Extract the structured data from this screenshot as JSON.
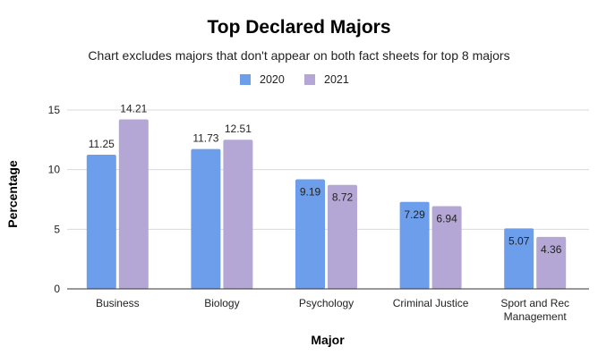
{
  "chart_data": {
    "type": "bar",
    "title": "Top Declared Majors",
    "subtitle": "Chart excludes majors that don't appear on both fact sheets for top 8 majors",
    "xlabel": "Major",
    "ylabel": "Percentage",
    "categories": [
      "Business",
      "Biology",
      "Psychology",
      "Criminal Justice",
      "Sport and Rec Management"
    ],
    "category_lines": [
      [
        "Business"
      ],
      [
        "Biology"
      ],
      [
        "Psychology"
      ],
      [
        "Criminal Justice"
      ],
      [
        "Sport and Rec",
        "Management"
      ]
    ],
    "series": [
      {
        "name": "2020",
        "values": [
          11.25,
          11.73,
          9.19,
          7.29,
          5.07
        ],
        "color": "#6d9eeb"
      },
      {
        "name": "2021",
        "values": [
          14.21,
          12.51,
          8.72,
          6.94,
          4.36
        ],
        "color": "#b4a7d6"
      }
    ],
    "value_labels": [
      [
        "11.25",
        "11.73",
        "9.19",
        "7.29",
        "5.07"
      ],
      [
        "14.21",
        "12.51",
        "8.72",
        "6.94",
        "4.36"
      ]
    ],
    "ylim": [
      0,
      15
    ],
    "yticks": [
      0,
      5,
      10,
      15
    ],
    "grid": true,
    "legend_position": "top-center"
  }
}
